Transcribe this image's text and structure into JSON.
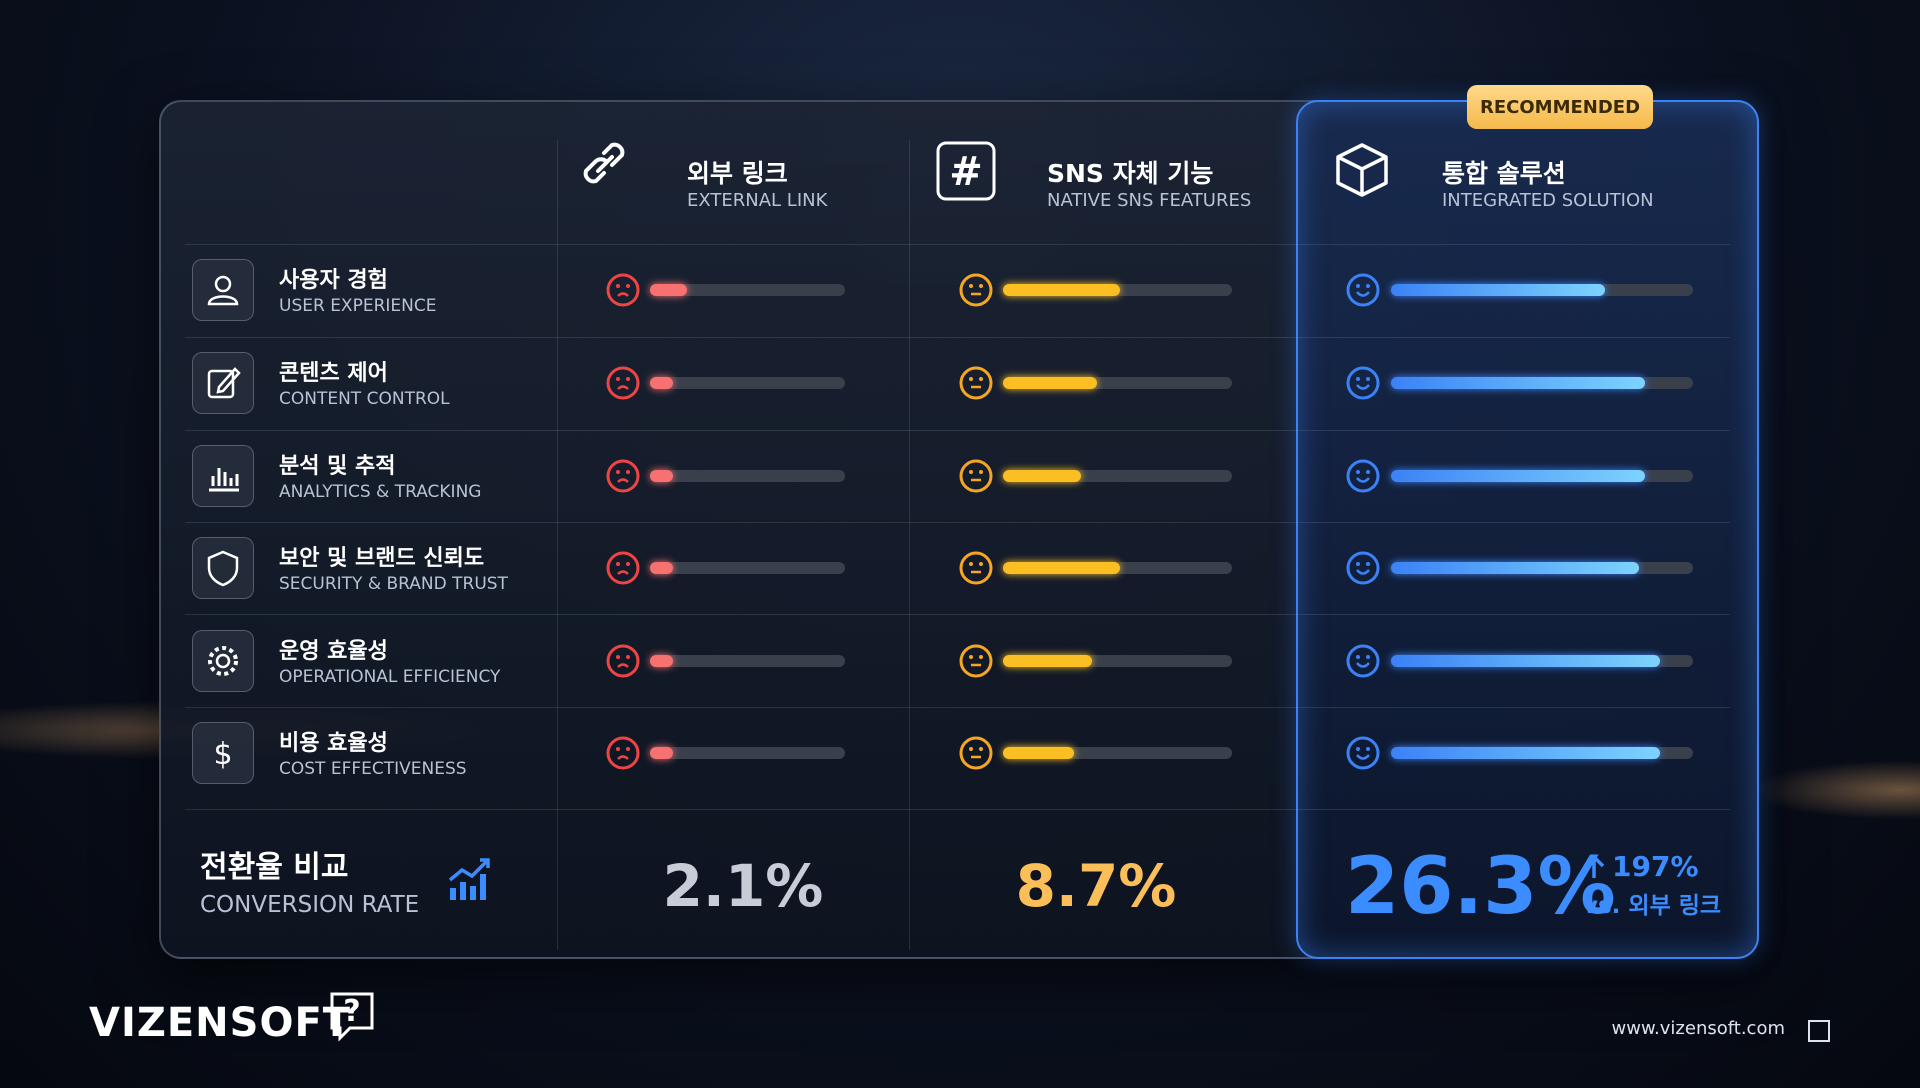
{
  "badge": "RECOMMENDED",
  "columns": [
    {
      "title": "외부 링크",
      "subtitle": "EXTERNAL LINK",
      "face": "sad",
      "color": "#ef4444",
      "bar_color": "#f87171",
      "scores": [
        19,
        12,
        12,
        12,
        12,
        12
      ],
      "conversion": "2.1%",
      "conversion_color": "#c7ccd6"
    },
    {
      "title": "SNS 자체 기능",
      "subtitle": "NATIVE SNS FEATURES",
      "face": "neutral",
      "color": "#f5a623",
      "bar_color": "#fbbf24",
      "scores": [
        51,
        41,
        34,
        51,
        39,
        31
      ],
      "conversion": "8.7%",
      "conversion_color": "#fbbf5a"
    },
    {
      "title": "통합 솔루션",
      "subtitle": "INTEGRATED SOLUTION",
      "face": "happy",
      "color": "#3b82f6",
      "bar_color": "#3b82f6",
      "scores": [
        71,
        84,
        84,
        82,
        89,
        89
      ],
      "conversion": "26.3%",
      "conversion_color": "#3b8cff"
    }
  ],
  "rows": [
    {
      "title": "사용자 경험",
      "subtitle": "USER EXPERIENCE"
    },
    {
      "title": "콘텐츠 제어",
      "subtitle": "CONTENT CONTROL"
    },
    {
      "title": "분석 및 추적",
      "subtitle": "ANALYTICS & TRACKING"
    },
    {
      "title": "보안 및 브랜드 신뢰도",
      "subtitle": "SECURITY & BRAND TRUST"
    },
    {
      "title": "운영 효율성",
      "subtitle": "OPERATIONAL EFFICIENCY"
    },
    {
      "title": "비용 효율성",
      "subtitle": "COST EFFECTIVENESS"
    }
  ],
  "conversion": {
    "title": "전환율 비교",
    "subtitle": "CONVERSION RATE"
  },
  "highlight": {
    "change": "197%",
    "note": "vs. 외부 링크"
  },
  "brand": "VIZENSOFT",
  "url": "www.vizensoft.com"
}
